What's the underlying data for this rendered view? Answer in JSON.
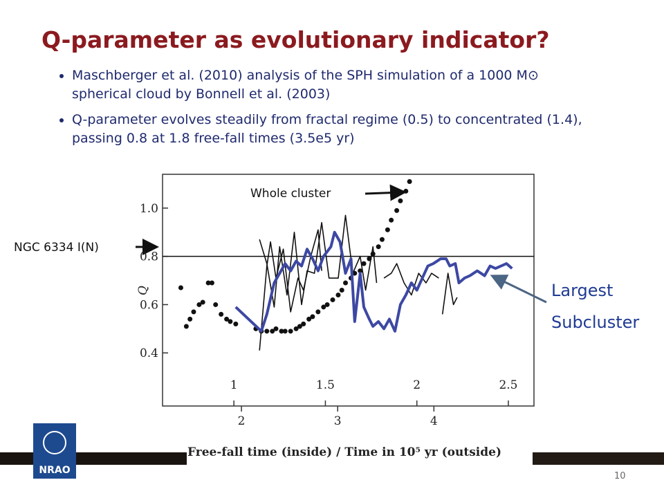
{
  "title": "Q-parameter as evolutionary indicator?",
  "bullets": [
    "Maschberger et al. (2010) analysis of the SPH simulation of a 1000 M⊙ spherical cloud by Bonnell et al. (2003)",
    "Q-parameter evolves steadily from fractal regime (0.5) to concentrated (1.4), passing 0.8 at 1.8 free-fall times (3.5e5 yr)"
  ],
  "chart_data": {
    "type": "line",
    "ylabel": "Q",
    "xlabel": "Free-fall time (inside) / Time in 10⁵ yr (outside)",
    "xlim": [
      0.61,
      2.64
    ],
    "xticks": [
      1,
      1.5,
      2,
      2.5
    ],
    "x2lim": [
      1.18,
      5.04
    ],
    "x2ticks": [
      2,
      3,
      4
    ],
    "ylim": [
      0.18,
      1.14
    ],
    "yticks": [
      0.4,
      0.6,
      0.8,
      {
        "value": 1.0,
        "label": "1.0"
      }
    ],
    "reference_line": {
      "value": 0.8,
      "label": "NGC 6334 I(N)"
    },
    "annotations": {
      "whole": "Whole cluster",
      "largest": [
        "Largest",
        "Subcluster"
      ]
    },
    "series": [
      {
        "mode": "markers",
        "color": "#111111",
        "x": [
          0.71,
          0.74,
          0.76,
          0.78,
          0.81,
          0.83,
          0.86,
          0.88,
          0.9,
          0.93,
          0.96,
          0.98,
          1.01,
          1.12,
          1.15,
          1.18,
          1.21,
          1.23,
          1.26,
          1.28,
          1.31,
          1.34,
          1.36,
          1.38,
          1.41,
          1.43,
          1.46,
          1.49,
          1.51,
          1.54,
          1.57,
          1.59,
          1.61,
          1.64,
          1.66,
          1.69,
          1.71,
          1.74,
          1.76,
          1.79,
          1.81,
          1.84,
          1.86,
          1.89,
          1.91,
          1.94,
          1.96
        ],
        "values": [
          0.67,
          0.51,
          0.54,
          0.57,
          0.6,
          0.61,
          0.69,
          0.69,
          0.6,
          0.56,
          0.54,
          0.53,
          0.52,
          0.5,
          0.49,
          0.49,
          0.49,
          0.5,
          0.49,
          0.49,
          0.49,
          0.5,
          0.51,
          0.52,
          0.54,
          0.55,
          0.57,
          0.59,
          0.6,
          0.62,
          0.64,
          0.66,
          0.69,
          0.71,
          0.73,
          0.74,
          0.77,
          0.79,
          0.81,
          0.84,
          0.87,
          0.91,
          0.95,
          0.99,
          1.03,
          1.07,
          1.11
        ]
      },
      {
        "mode": "lines",
        "color": "#111111",
        "width": 1.6,
        "x": [
          1.14,
          1.18,
          1.2,
          1.23,
          1.27,
          1.31,
          1.35,
          1.38,
          1.42,
          1.46,
          1.48
        ],
        "values": [
          0.41,
          0.76,
          0.86,
          0.71,
          0.83,
          0.57,
          0.71,
          0.66,
          0.8,
          0.91,
          0.74
        ]
      },
      {
        "mode": "lines",
        "color": "#111111",
        "width": 1.6,
        "x": [
          1.14,
          1.18,
          1.22,
          1.25,
          1.29,
          1.33,
          1.37,
          1.4,
          1.44,
          1.48,
          1.52,
          1.57,
          1.61,
          1.65,
          1.69,
          1.72,
          1.76,
          1.78
        ],
        "values": [
          0.87,
          0.77,
          0.59,
          0.84,
          0.64,
          0.9,
          0.6,
          0.74,
          0.73,
          0.94,
          0.71,
          0.71,
          0.97,
          0.73,
          0.8,
          0.66,
          0.84,
          0.69
        ]
      },
      {
        "mode": "lines",
        "color": "#111111",
        "width": 1.6,
        "x": [
          1.82,
          1.86,
          1.89,
          1.93,
          1.97,
          2.01,
          2.05,
          2.08,
          2.12
        ],
        "values": [
          0.71,
          0.73,
          0.77,
          0.69,
          0.64,
          0.73,
          0.69,
          0.73,
          0.71
        ]
      },
      {
        "mode": "lines",
        "color": "#111111",
        "width": 1.6,
        "x": [
          2.14,
          2.17,
          2.2,
          2.22
        ],
        "values": [
          0.56,
          0.73,
          0.6,
          0.63
        ]
      },
      {
        "mode": "lines",
        "color": "#3d48a3",
        "width": 4,
        "x": [
          1.01,
          1.15,
          1.18,
          1.22,
          1.25,
          1.28,
          1.31,
          1.34,
          1.37,
          1.4,
          1.43,
          1.46,
          1.49,
          1.53,
          1.55,
          1.58,
          1.61,
          1.64,
          1.66,
          1.69,
          1.71,
          1.74,
          1.76,
          1.79,
          1.82,
          1.85,
          1.88,
          1.91,
          1.94,
          1.97,
          2.0,
          2.03,
          2.06,
          2.09,
          2.13,
          2.16,
          2.18,
          2.21,
          2.23,
          2.26,
          2.29,
          2.33,
          2.37,
          2.4,
          2.43,
          2.46,
          2.49,
          2.52
        ],
        "values": [
          0.59,
          0.49,
          0.56,
          0.69,
          0.73,
          0.77,
          0.74,
          0.78,
          0.76,
          0.83,
          0.79,
          0.74,
          0.8,
          0.84,
          0.9,
          0.86,
          0.73,
          0.79,
          0.53,
          0.73,
          0.59,
          0.54,
          0.51,
          0.53,
          0.5,
          0.54,
          0.49,
          0.6,
          0.64,
          0.69,
          0.66,
          0.71,
          0.76,
          0.77,
          0.79,
          0.79,
          0.76,
          0.77,
          0.69,
          0.71,
          0.72,
          0.74,
          0.72,
          0.76,
          0.75,
          0.76,
          0.77,
          0.75
        ]
      }
    ]
  },
  "logo": "NRAO",
  "page_number": "10"
}
